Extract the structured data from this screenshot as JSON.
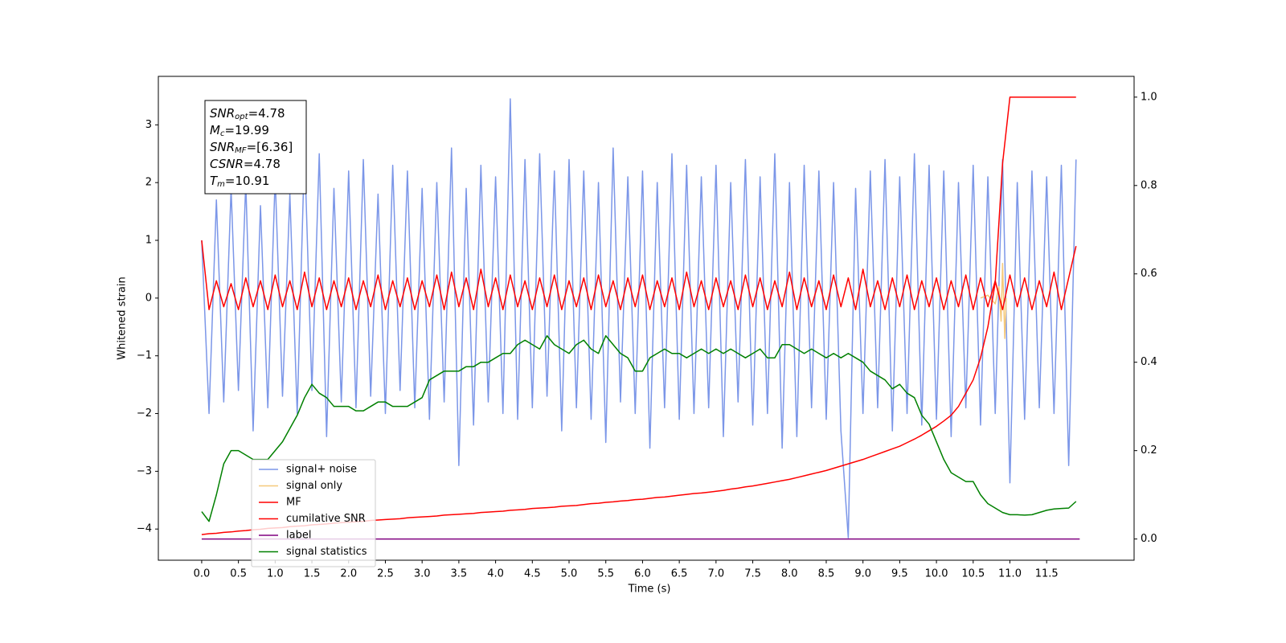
{
  "chart_data": {
    "type": "line",
    "xlabel": "Time (s)",
    "ylabel": "Whitened strain",
    "x": [
      0,
      0.1,
      0.2,
      0.3,
      0.4,
      0.5,
      0.6,
      0.7,
      0.8,
      0.9,
      1,
      1.1,
      1.2,
      1.3,
      1.4,
      1.5,
      1.6,
      1.7,
      1.8,
      1.9,
      2,
      2.1,
      2.2,
      2.3,
      2.4,
      2.5,
      2.6,
      2.7,
      2.8,
      2.9,
      3,
      3.1,
      3.2,
      3.3,
      3.4,
      3.5,
      3.6,
      3.7,
      3.8,
      3.9,
      4,
      4.1,
      4.2,
      4.3,
      4.4,
      4.5,
      4.6,
      4.7,
      4.8,
      4.9,
      5,
      5.1,
      5.2,
      5.3,
      5.4,
      5.5,
      5.6,
      5.7,
      5.8,
      5.9,
      6,
      6.1,
      6.2,
      6.3,
      6.4,
      6.5,
      6.6,
      6.7,
      6.8,
      6.9,
      7,
      7.1,
      7.2,
      7.3,
      7.4,
      7.5,
      7.6,
      7.7,
      7.8,
      7.9,
      8,
      8.1,
      8.2,
      8.3,
      8.4,
      8.5,
      8.6,
      8.7,
      8.8,
      8.9,
      9,
      9.1,
      9.2,
      9.3,
      9.4,
      9.5,
      9.6,
      9.7,
      9.8,
      9.9,
      10,
      10.1,
      10.2,
      10.3,
      10.4,
      10.5,
      10.6,
      10.7,
      10.8,
      10.9,
      11,
      11.1,
      11.2,
      11.3,
      11.4,
      11.5,
      11.6,
      11.7,
      11.8,
      11.9
    ],
    "series": [
      {
        "name": "signal+ noise",
        "color": "#7b96e8",
        "axis": "y",
        "values": [
          1.0,
          -2.0,
          1.7,
          -1.8,
          1.9,
          -1.6,
          2.0,
          -2.3,
          1.6,
          -1.9,
          2.1,
          -1.7,
          1.8,
          -2.0,
          2.6,
          -1.6,
          2.5,
          -2.4,
          1.9,
          -1.8,
          2.2,
          -1.9,
          2.4,
          -1.7,
          1.8,
          -2.0,
          2.3,
          -1.6,
          2.2,
          -1.9,
          1.9,
          -2.1,
          2.0,
          -1.8,
          2.6,
          -2.9,
          1.9,
          -2.2,
          2.3,
          -1.8,
          2.1,
          -2.0,
          3.45,
          -2.1,
          2.4,
          -1.9,
          2.5,
          -1.7,
          2.2,
          -2.3,
          2.4,
          -1.9,
          2.2,
          -2.1,
          2.0,
          -2.5,
          2.6,
          -1.8,
          2.1,
          -2.0,
          2.2,
          -2.6,
          2.0,
          -1.9,
          2.5,
          -2.1,
          2.3,
          -2.0,
          2.1,
          -1.9,
          2.3,
          -2.4,
          2.0,
          -1.8,
          2.4,
          -2.2,
          2.1,
          -2.0,
          2.5,
          -2.6,
          2.0,
          -2.4,
          2.3,
          -1.9,
          2.2,
          -2.1,
          2.0,
          -2.3,
          -4.15,
          1.9,
          -2.0,
          2.2,
          -1.9,
          2.4,
          -2.3,
          2.1,
          -2.0,
          2.5,
          -2.2,
          2.3,
          -2.1,
          2.2,
          -2.4,
          2.0,
          -1.9,
          2.3,
          -2.2,
          2.1,
          -2.0,
          2.4,
          -3.2,
          2.0,
          -2.1,
          2.2,
          -1.9,
          2.1,
          -2.0,
          2.3,
          -2.9,
          2.4
        ]
      },
      {
        "name": "signal only",
        "color": "#f5c97a",
        "axis": "y",
        "x": [
          10.6,
          10.7,
          10.8,
          10.85,
          10.88,
          10.9,
          10.93,
          10.95
        ],
        "values": [
          0.0,
          0.05,
          -0.1,
          0.2,
          -0.4,
          0.6,
          -0.7,
          0.0
        ]
      },
      {
        "name": "MF",
        "color": "#ff0000",
        "axis": "y",
        "values": [
          1.0,
          -0.2,
          0.3,
          -0.15,
          0.25,
          -0.2,
          0.35,
          -0.15,
          0.3,
          -0.2,
          0.4,
          -0.15,
          0.3,
          -0.2,
          0.45,
          -0.15,
          0.35,
          -0.2,
          0.3,
          -0.15,
          0.35,
          -0.2,
          0.3,
          -0.15,
          0.4,
          -0.2,
          0.3,
          -0.15,
          0.35,
          -0.2,
          0.3,
          -0.15,
          0.4,
          -0.2,
          0.45,
          -0.15,
          0.35,
          -0.2,
          0.5,
          -0.15,
          0.35,
          -0.2,
          0.4,
          -0.15,
          0.3,
          -0.2,
          0.35,
          -0.15,
          0.4,
          -0.2,
          0.3,
          -0.15,
          0.35,
          -0.2,
          0.4,
          -0.15,
          0.3,
          -0.2,
          0.35,
          -0.15,
          0.4,
          -0.2,
          0.3,
          -0.15,
          0.35,
          -0.2,
          0.45,
          -0.15,
          0.3,
          -0.2,
          0.35,
          -0.15,
          0.3,
          -0.2,
          0.4,
          -0.15,
          0.35,
          -0.2,
          0.3,
          -0.15,
          0.45,
          -0.2,
          0.35,
          -0.15,
          0.3,
          -0.2,
          0.4,
          -0.15,
          0.35,
          -0.2,
          0.5,
          -0.15,
          0.3,
          -0.2,
          0.35,
          -0.15,
          0.4,
          -0.2,
          0.3,
          -0.15,
          0.35,
          -0.2,
          0.3,
          -0.15,
          0.4,
          -0.2,
          0.35,
          -0.15,
          0.3,
          -0.2,
          0.4,
          -0.15,
          0.35,
          -0.2,
          0.3,
          -0.15,
          0.45,
          -0.2,
          0.35,
          0.9
        ]
      },
      {
        "name": "cumilative SNR",
        "color": "#ff0000",
        "axis": "y2",
        "values": [
          0.01,
          0.012,
          0.013,
          0.015,
          0.016,
          0.018,
          0.019,
          0.021,
          0.022,
          0.024,
          0.025,
          0.026,
          0.028,
          0.029,
          0.03,
          0.032,
          0.033,
          0.034,
          0.036,
          0.037,
          0.038,
          0.039,
          0.04,
          0.042,
          0.043,
          0.044,
          0.045,
          0.046,
          0.048,
          0.049,
          0.05,
          0.051,
          0.052,
          0.054,
          0.055,
          0.056,
          0.057,
          0.058,
          0.06,
          0.061,
          0.062,
          0.063,
          0.065,
          0.066,
          0.067,
          0.069,
          0.07,
          0.071,
          0.072,
          0.074,
          0.075,
          0.076,
          0.078,
          0.08,
          0.081,
          0.083,
          0.084,
          0.086,
          0.087,
          0.089,
          0.09,
          0.092,
          0.094,
          0.095,
          0.097,
          0.099,
          0.101,
          0.103,
          0.104,
          0.106,
          0.108,
          0.11,
          0.113,
          0.115,
          0.118,
          0.12,
          0.123,
          0.126,
          0.129,
          0.132,
          0.135,
          0.139,
          0.143,
          0.147,
          0.151,
          0.155,
          0.16,
          0.165,
          0.17,
          0.175,
          0.18,
          0.186,
          0.192,
          0.198,
          0.204,
          0.21,
          0.218,
          0.226,
          0.235,
          0.245,
          0.255,
          0.267,
          0.28,
          0.3,
          0.33,
          0.36,
          0.41,
          0.48,
          0.58,
          0.85,
          1.0,
          1.0,
          1.0,
          1.0,
          1.0,
          1.0,
          1.0,
          1.0,
          1.0,
          1.0
        ]
      },
      {
        "name": "label",
        "color": "#800080",
        "axis": "y2",
        "x": [
          0,
          11.95
        ],
        "values": [
          0,
          0
        ]
      },
      {
        "name": "signal statistics",
        "color": "#008000",
        "axis": "y2",
        "values": [
          0.062,
          0.04,
          0.1,
          0.17,
          0.2,
          0.2,
          0.19,
          0.18,
          0.18,
          0.18,
          0.2,
          0.22,
          0.25,
          0.28,
          0.32,
          0.35,
          0.33,
          0.32,
          0.3,
          0.3,
          0.3,
          0.29,
          0.29,
          0.3,
          0.31,
          0.31,
          0.3,
          0.3,
          0.3,
          0.31,
          0.32,
          0.36,
          0.37,
          0.38,
          0.38,
          0.38,
          0.39,
          0.39,
          0.4,
          0.4,
          0.41,
          0.42,
          0.42,
          0.44,
          0.45,
          0.44,
          0.43,
          0.46,
          0.44,
          0.43,
          0.42,
          0.44,
          0.45,
          0.43,
          0.42,
          0.46,
          0.44,
          0.42,
          0.41,
          0.38,
          0.38,
          0.41,
          0.42,
          0.43,
          0.42,
          0.42,
          0.41,
          0.42,
          0.43,
          0.42,
          0.43,
          0.42,
          0.43,
          0.42,
          0.41,
          0.42,
          0.43,
          0.41,
          0.41,
          0.44,
          0.44,
          0.43,
          0.42,
          0.43,
          0.42,
          0.41,
          0.42,
          0.41,
          0.42,
          0.41,
          0.4,
          0.38,
          0.37,
          0.36,
          0.34,
          0.35,
          0.33,
          0.32,
          0.28,
          0.26,
          0.22,
          0.18,
          0.15,
          0.14,
          0.13,
          0.13,
          0.1,
          0.08,
          0.07,
          0.06,
          0.055,
          0.055,
          0.054,
          0.055,
          0.06,
          0.065,
          0.068,
          0.069,
          0.07,
          0.085
        ]
      }
    ],
    "xlim": [
      -0.59,
      12.69
    ],
    "xticks": [
      {
        "value": 0,
        "label": "0.0"
      },
      0.5,
      {
        "value": 1,
        "label": "1.0"
      },
      1.5,
      {
        "value": 2,
        "label": "2.0"
      },
      2.5,
      {
        "value": 3,
        "label": "3.0"
      },
      3.5,
      {
        "value": 4,
        "label": "4.0"
      },
      4.5,
      {
        "value": 5,
        "label": "5.0"
      },
      5.5,
      {
        "value": 6,
        "label": "6.0"
      },
      6.5,
      {
        "value": 7,
        "label": "7.0"
      },
      7.5,
      {
        "value": 8,
        "label": "8.0"
      },
      8.5,
      {
        "value": 9,
        "label": "9.0"
      },
      9.5,
      {
        "value": 10,
        "label": "10.0"
      },
      10.5,
      {
        "value": 11,
        "label": "11.0"
      },
      11.5
    ],
    "ylim": [
      -4.54,
      3.84
    ],
    "yticks": [
      {
        "value": -4,
        "label": "−4"
      },
      {
        "value": -3,
        "label": "−3"
      },
      {
        "value": -2,
        "label": "−2"
      },
      {
        "value": -1,
        "label": "−1"
      },
      0,
      1,
      2,
      3
    ],
    "y2lim": [
      -0.048,
      1.047
    ],
    "y2ticks": [
      {
        "value": 0,
        "label": "0.0"
      },
      0.2,
      0.4,
      0.6,
      0.8,
      {
        "value": 1,
        "label": "1.0"
      }
    ],
    "legend": "lower left",
    "annotation": [
      {
        "symbol": "SNR",
        "sub": "opt",
        "text": "=4.78"
      },
      {
        "symbol": "M",
        "sub": "c",
        "text": "=19.99"
      },
      {
        "symbol": "SNR",
        "sub": "MF",
        "text": "=[6.36]"
      },
      {
        "symbol": "CSNR",
        "text": "=4.78"
      },
      {
        "symbol": "T",
        "sub": "m",
        "text": "=10.91"
      }
    ]
  }
}
